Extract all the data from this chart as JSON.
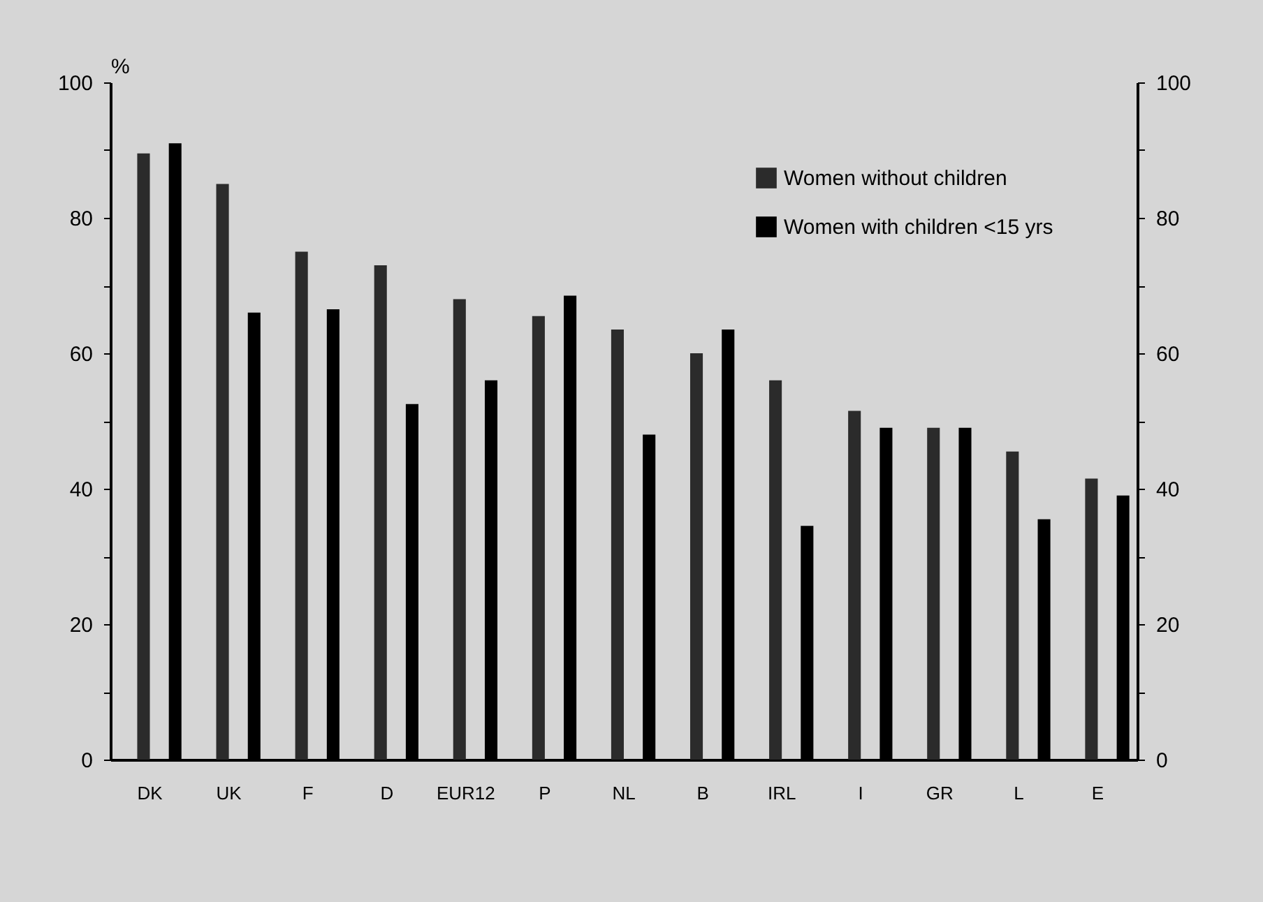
{
  "chart_data": {
    "type": "bar",
    "ylabel": "%",
    "categories": [
      "DK",
      "UK",
      "F",
      "D",
      "EUR12",
      "P",
      "NL",
      "B",
      "IRL",
      "I",
      "GR",
      "L",
      "E"
    ],
    "series": [
      {
        "name": "Women without children",
        "color": "#2b2b2b",
        "values": [
          89.5,
          85,
          75,
          73,
          68,
          65.5,
          63.5,
          60,
          56,
          51.5,
          49,
          45.5,
          41.5
        ]
      },
      {
        "name": "Women with children <15 yrs",
        "color": "#000000",
        "values": [
          91,
          66,
          66.5,
          52.5,
          56,
          68.5,
          48,
          63.5,
          34.5,
          49,
          49,
          35.5,
          39
        ]
      }
    ],
    "ylim": [
      0,
      100
    ],
    "yticks": [
      0,
      {
        "value": 10,
        "label": null
      },
      20,
      {
        "value": 30,
        "label": null
      },
      40,
      {
        "value": 50,
        "label": null
      },
      60,
      {
        "value": 70,
        "label": null
      },
      80,
      {
        "value": 90,
        "label": null
      },
      100
    ],
    "y2lim": [
      0,
      100
    ],
    "y2ticks": [
      0,
      {
        "value": 10,
        "label": null
      },
      20,
      {
        "value": 30,
        "label": null
      },
      40,
      {
        "value": 50,
        "label": null
      },
      60,
      {
        "value": 70,
        "label": null
      },
      80,
      {
        "value": 90,
        "label": null
      },
      100
    ],
    "legend": "top right",
    "grid": false
  }
}
